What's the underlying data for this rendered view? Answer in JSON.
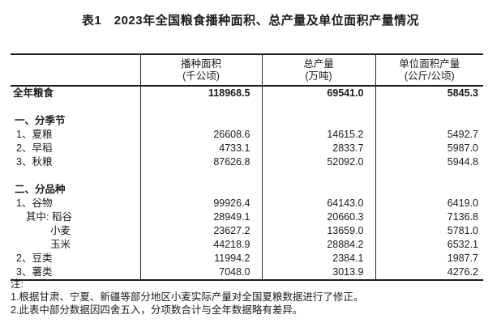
{
  "title": "表1　2023年全国粮食播种面积、总产量及单位面积产量情况",
  "table": {
    "columns": [
      {
        "label": "播种面积",
        "unit": "(千公顷)"
      },
      {
        "label": "总产量",
        "unit": "(万吨)"
      },
      {
        "label": "单位面积产量",
        "unit": "(公斤/公顷)"
      }
    ],
    "rows": [
      {
        "type": "total",
        "level": 0,
        "label": "全年粮食",
        "values": [
          "118968.5",
          "69541.0",
          "5845.3"
        ]
      },
      {
        "type": "spacer",
        "level": 0,
        "label": "",
        "values": [
          "",
          "",
          ""
        ]
      },
      {
        "type": "section",
        "level": 0,
        "label": "一、分季节",
        "values": [
          "",
          "",
          ""
        ]
      },
      {
        "type": "item",
        "level": 0,
        "label": "1、夏粮",
        "values": [
          "26608.6",
          "14615.2",
          "5492.7"
        ]
      },
      {
        "type": "item",
        "level": 0,
        "label": "2、早稻",
        "values": [
          "4733.1",
          "2833.7",
          "5987.0"
        ]
      },
      {
        "type": "item",
        "level": 0,
        "label": "3、秋粮",
        "values": [
          "87626.8",
          "52092.0",
          "5944.8"
        ]
      },
      {
        "type": "spacer",
        "level": 0,
        "label": "",
        "values": [
          "",
          "",
          ""
        ]
      },
      {
        "type": "section",
        "level": 0,
        "label": "二、分品种",
        "values": [
          "",
          "",
          ""
        ]
      },
      {
        "type": "item",
        "level": 0,
        "label": "1、谷物",
        "values": [
          "99926.4",
          "64143.0",
          "6419.0"
        ]
      },
      {
        "type": "item",
        "level": 1,
        "label": "其中: 稻谷",
        "values": [
          "28949.1",
          "20660.3",
          "7136.8"
        ]
      },
      {
        "type": "item",
        "level": 2,
        "label": "小麦",
        "values": [
          "23627.2",
          "13659.0",
          "5781.0"
        ]
      },
      {
        "type": "item",
        "level": 2,
        "label": "玉米",
        "values": [
          "44218.9",
          "28884.2",
          "6532.1"
        ]
      },
      {
        "type": "item",
        "level": 0,
        "label": "2、豆类",
        "values": [
          "11994.2",
          "2384.1",
          "1987.7"
        ]
      },
      {
        "type": "item",
        "level": 0,
        "label": "3、薯类",
        "values": [
          "7048.0",
          "3013.9",
          "4276.2"
        ]
      }
    ]
  },
  "notes": {
    "heading": "注:",
    "items": [
      "1.根据甘肃、宁夏、新疆等部分地区小麦实际产量对全国夏粮数据进行了修正。",
      "2.此表中部分数据因四舍五入，分项数合计与全年数据略有差异。"
    ]
  }
}
